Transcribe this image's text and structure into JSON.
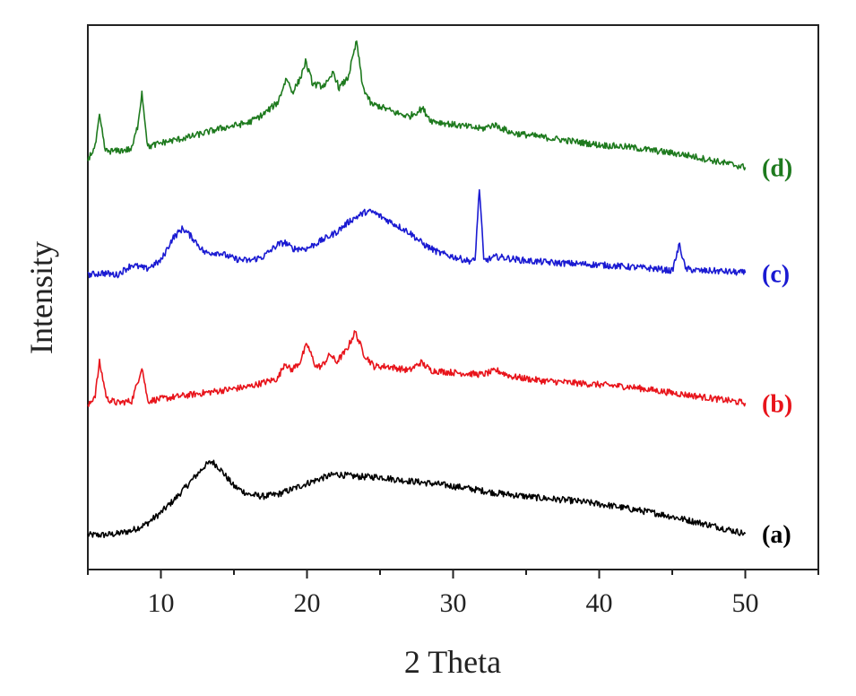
{
  "chart_data": {
    "type": "line",
    "title": "",
    "xlabel": "2 Theta",
    "ylabel": "Intensity",
    "xlim": [
      5,
      55
    ],
    "xticks": [
      10,
      20,
      30,
      40,
      50
    ],
    "xtick_labels": [
      "10",
      "20",
      "30",
      "40",
      "50"
    ],
    "y_ticks_shown": false,
    "grid": false,
    "legend": "none; series labeled at right end of each trace",
    "note_y_units": "arbitrary intensity units (curves vertically offset, stacked a→d from bottom to top)",
    "series": [
      {
        "name": "(a)",
        "color": "#000000",
        "x": [
          5,
          6,
          7,
          8,
          9,
          10,
          11,
          12,
          13,
          13.5,
          14,
          15,
          16,
          17,
          18,
          19,
          20,
          21,
          22,
          23,
          24,
          25,
          26,
          27,
          28,
          29,
          30,
          31,
          32,
          33,
          34,
          35,
          36,
          37,
          38,
          39,
          40,
          41,
          42,
          43,
          44,
          45,
          46,
          47,
          48,
          49,
          50
        ],
        "y": [
          0.5,
          0.5,
          0.8,
          1.6,
          3.2,
          6.0,
          9.5,
          13.5,
          17.5,
          18.6,
          17.0,
          12.5,
          10.5,
          10.0,
          10.5,
          11.8,
          13.2,
          14.5,
          15.5,
          15.0,
          14.8,
          14.8,
          14.2,
          13.8,
          13.4,
          13.0,
          12.5,
          12.0,
          11.4,
          10.8,
          10.4,
          10.0,
          9.6,
          9.3,
          9.0,
          8.6,
          8.1,
          7.6,
          7.0,
          6.4,
          5.8,
          5.0,
          4.2,
          3.4,
          2.6,
          1.7,
          0.8
        ]
      },
      {
        "name": "(b)",
        "color": "#e8141b",
        "x": [
          5,
          5.5,
          5.8,
          6.3,
          7,
          8,
          8.4,
          8.7,
          9.1,
          10,
          12,
          14,
          16,
          17,
          18,
          18.5,
          18.9,
          19.5,
          20,
          20.6,
          21,
          21.6,
          22,
          22.7,
          23.3,
          23.9,
          24.6,
          25.5,
          27,
          27.8,
          28.5,
          30,
          32,
          33,
          34,
          36,
          38,
          40,
          42,
          44,
          46,
          48,
          50
        ],
        "y": [
          32,
          35,
          43,
          34,
          33,
          33.5,
          38,
          42,
          33.5,
          34,
          35,
          36,
          37,
          38,
          39,
          43,
          41,
          43,
          47.5,
          42,
          42,
          45,
          43,
          46,
          50.5,
          45,
          42,
          42,
          41,
          43,
          41,
          40.5,
          40,
          41,
          39.5,
          38.5,
          38,
          37.5,
          37,
          36,
          35,
          34,
          33
        ]
      },
      {
        "name": "(c)",
        "color": "#1a1ad2",
        "x": [
          5,
          6,
          7,
          8,
          9,
          10,
          10.8,
          11.5,
          12.2,
          13,
          14,
          15,
          16,
          17,
          18,
          18.5,
          19,
          20,
          21,
          22,
          23,
          24,
          24.5,
          25,
          26,
          27,
          28,
          29,
          30,
          31,
          31.5,
          31.8,
          32.1,
          33,
          35,
          37,
          40,
          42,
          44,
          45,
          45.5,
          45.9,
          47,
          48,
          50
        ],
        "y": [
          64.5,
          65,
          64.5,
          67,
          66,
          68,
          73.5,
          76,
          73.5,
          70,
          70,
          68.5,
          68,
          69,
          72,
          72.5,
          71,
          71,
          73,
          75,
          78,
          80,
          80,
          79,
          77,
          75,
          72,
          70,
          69,
          68,
          68,
          86,
          68,
          69,
          68,
          67.5,
          67,
          66.5,
          66,
          65.5,
          72,
          66,
          65.5,
          65.5,
          65
        ]
      },
      {
        "name": "(d)",
        "color": "#1e7a1e",
        "x": [
          5,
          5.5,
          5.8,
          6.2,
          7,
          8,
          8.4,
          8.7,
          9.1,
          10,
          12,
          14,
          16,
          17,
          18,
          18.6,
          19,
          19.5,
          19.9,
          20.4,
          21,
          21.5,
          21.8,
          22.2,
          22.8,
          23.4,
          23.8,
          24.4,
          25,
          26,
          27,
          27.9,
          28.5,
          30,
          32,
          32.8,
          34,
          36,
          38,
          40,
          42,
          44,
          46,
          48,
          50
        ],
        "y": [
          93,
          96,
          103.5,
          95,
          95,
          95.5,
          101,
          109.5,
          96,
          97,
          98.5,
          100.5,
          102,
          104,
          107,
          113,
          109.5,
          112.5,
          117,
          111.5,
          111,
          112,
          114.5,
          110.5,
          113,
          122,
          111,
          106.5,
          106,
          104.5,
          103.5,
          105.5,
          102.5,
          101.5,
          100.5,
          101.5,
          99.5,
          98.5,
          97.5,
          96.5,
          96,
          95,
          94,
          92.5,
          91
        ]
      }
    ],
    "colors": {
      "axis": "#222222",
      "text": "#222222",
      "background": "#ffffff"
    }
  }
}
